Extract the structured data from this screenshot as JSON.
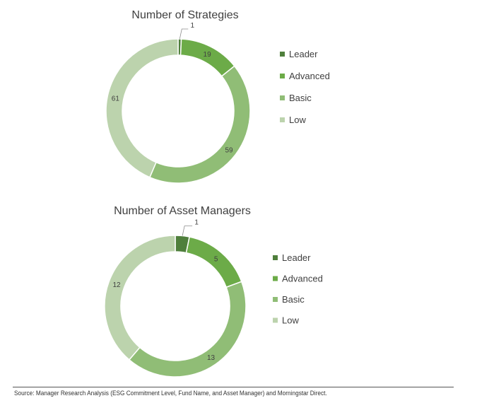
{
  "chart_data": [
    {
      "type": "pie",
      "donut": true,
      "title": "Number of Strategies",
      "categories": [
        "Leader",
        "Advanced",
        "Basic",
        "Low"
      ],
      "values": [
        1,
        19,
        59,
        61
      ],
      "colors": [
        "#4f7f3c",
        "#6cab48",
        "#90bd76",
        "#bcd3ad"
      ],
      "legend_position": "right"
    },
    {
      "type": "pie",
      "donut": true,
      "title": "Number of Asset Managers",
      "categories": [
        "Leader",
        "Advanced",
        "Basic",
        "Low"
      ],
      "values": [
        1,
        5,
        13,
        12
      ],
      "colors": [
        "#4f7f3c",
        "#6cab48",
        "#90bd76",
        "#bcd3ad"
      ],
      "legend_position": "right"
    }
  ],
  "source": "Source: Manager Research Analysis (ESG Commitment Level, Fund Name, and Asset Manager) and Morningstar Direct."
}
